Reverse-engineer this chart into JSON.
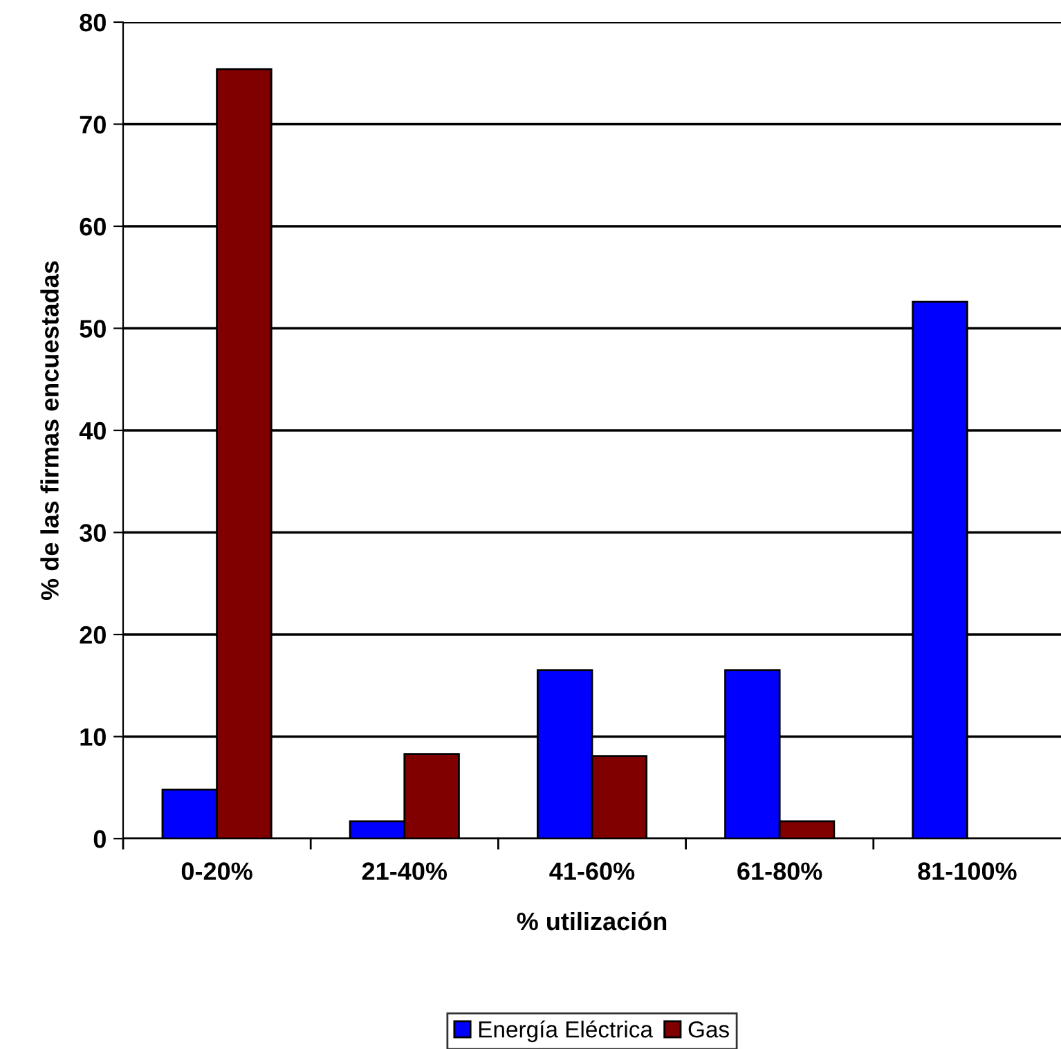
{
  "chart_data": {
    "type": "bar",
    "xlabel": "% utilización",
    "ylabel": "% de las firmas encuestadas",
    "categories": [
      "0-20%",
      "21-40%",
      "41-60%",
      "61-80%",
      "81-100%"
    ],
    "series": [
      {
        "name": "Energía Eléctrica",
        "color": "#0000ff",
        "values": [
          4.8,
          1.7,
          16.5,
          16.5,
          52.6
        ]
      },
      {
        "name": "Gas",
        "color": "#800000",
        "values": [
          75.4,
          8.3,
          8.1,
          1.7,
          null
        ]
      }
    ],
    "ylim": [
      0,
      80
    ],
    "yticks": [
      0,
      10,
      20,
      30,
      40,
      50,
      60,
      70,
      80
    ],
    "grid": "y",
    "legend": "bottom"
  }
}
